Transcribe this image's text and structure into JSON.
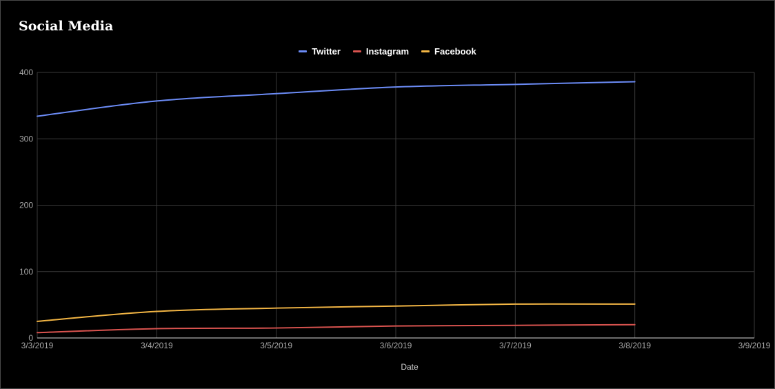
{
  "chart_data": {
    "type": "line",
    "title": "Social Media",
    "xlabel": "Date",
    "ylabel": "",
    "x": [
      "3/3/2019",
      "3/4/2019",
      "3/5/2019",
      "3/6/2019",
      "3/7/2019",
      "3/8/2019"
    ],
    "x_ticks": [
      "3/3/2019",
      "3/4/2019",
      "3/5/2019",
      "3/6/2019",
      "3/7/2019",
      "3/8/2019",
      "3/9/2019"
    ],
    "ylim": [
      0,
      400
    ],
    "y_ticks": [
      0,
      100,
      200,
      300,
      400
    ],
    "grid": true,
    "legend_position": "top-center",
    "series": [
      {
        "name": "Twitter",
        "color": "#6b8bf5",
        "values": [
          334,
          357,
          368,
          378,
          382,
          386
        ]
      },
      {
        "name": "Instagram",
        "color": "#d9534f",
        "values": [
          8,
          14,
          15,
          18,
          19,
          20
        ]
      },
      {
        "name": "Facebook",
        "color": "#f2b544",
        "values": [
          25,
          40,
          45,
          48,
          51,
          51
        ]
      }
    ]
  }
}
